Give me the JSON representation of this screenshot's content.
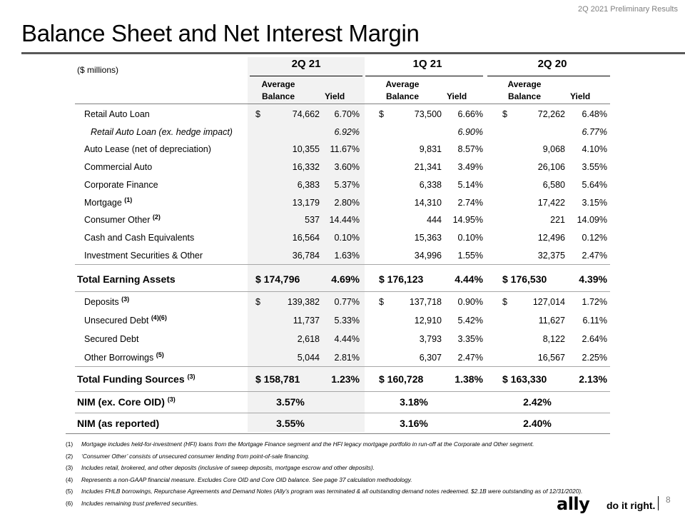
{
  "header": {
    "right_text": "2Q 2021 Preliminary Results",
    "title": "Balance Sheet and Net Interest Margin"
  },
  "table": {
    "units": "($ millions)",
    "periods": [
      "2Q 21",
      "1Q 21",
      "2Q 20"
    ],
    "col_avg_line1": "Average",
    "col_avg_line2": "Balance",
    "col_yield": "Yield",
    "assets": [
      {
        "label": "Retail Auto Loan",
        "sup": "",
        "italic": false,
        "dollar": true,
        "v": [
          "74,662",
          "6.70%",
          "73,500",
          "6.66%",
          "72,262",
          "6.48%"
        ]
      },
      {
        "label": "Retail Auto Loan (ex. hedge impact)",
        "sup": "",
        "italic": true,
        "dollar": false,
        "v": [
          "",
          "6.92%",
          "",
          "6.90%",
          "",
          "6.77%"
        ]
      },
      {
        "label": "Auto Lease (net of depreciation)",
        "sup": "",
        "italic": false,
        "dollar": false,
        "v": [
          "10,355",
          "11.67%",
          "9,831",
          "8.57%",
          "9,068",
          "4.10%"
        ]
      },
      {
        "label": "Commercial Auto",
        "sup": "",
        "italic": false,
        "dollar": false,
        "v": [
          "16,332",
          "3.60%",
          "21,341",
          "3.49%",
          "26,106",
          "3.55%"
        ]
      },
      {
        "label": "Corporate Finance",
        "sup": "",
        "italic": false,
        "dollar": false,
        "v": [
          "6,383",
          "5.37%",
          "6,338",
          "5.14%",
          "6,580",
          "5.64%"
        ]
      },
      {
        "label": "Mortgage",
        "sup": "(1)",
        "italic": false,
        "dollar": false,
        "v": [
          "13,179",
          "2.80%",
          "14,310",
          "2.74%",
          "17,422",
          "3.15%"
        ]
      },
      {
        "label": "Consumer Other",
        "sup": "(2)",
        "italic": false,
        "dollar": false,
        "v": [
          "537",
          "14.44%",
          "444",
          "14.95%",
          "221",
          "14.09%"
        ]
      },
      {
        "label": "Cash and Cash Equivalents",
        "sup": "",
        "italic": false,
        "dollar": false,
        "v": [
          "16,564",
          "0.10%",
          "15,363",
          "0.10%",
          "12,496",
          "0.12%"
        ]
      },
      {
        "label": "Investment Securities & Other",
        "sup": "",
        "italic": false,
        "dollar": false,
        "v": [
          "36,784",
          "1.63%",
          "34,996",
          "1.55%",
          "32,375",
          "2.47%"
        ]
      }
    ],
    "total_assets": {
      "label": "Total Earning Assets",
      "v": [
        "$  174,796",
        "4.69%",
        "$  176,123",
        "4.44%",
        "$  176,530",
        "4.39%"
      ]
    },
    "funding": [
      {
        "label": "Deposits",
        "sup": "(3)",
        "dollar": true,
        "v": [
          "139,382",
          "0.77%",
          "137,718",
          "0.90%",
          "127,014",
          "1.72%"
        ]
      },
      {
        "label": "Unsecured Debt",
        "sup": "(4)(6)",
        "dollar": false,
        "v": [
          "11,737",
          "5.33%",
          "12,910",
          "5.42%",
          "11,627",
          "6.11%"
        ]
      },
      {
        "label": "Secured Debt",
        "sup": "",
        "dollar": false,
        "v": [
          "2,618",
          "4.44%",
          "3,793",
          "3.35%",
          "8,122",
          "2.64%"
        ]
      },
      {
        "label": "Other Borrowings",
        "sup": "(5)",
        "dollar": false,
        "v": [
          "5,044",
          "2.81%",
          "6,307",
          "2.47%",
          "16,567",
          "2.25%"
        ]
      }
    ],
    "total_funding": {
      "label": "Total Funding Sources",
      "sup": "(3)",
      "v": [
        "$  158,781",
        "1.23%",
        "$  160,728",
        "1.38%",
        "$  163,330",
        "2.13%"
      ]
    },
    "nim_core": {
      "label": "NIM (ex. Core OID)",
      "sup": "(3)",
      "v": [
        "3.57%",
        "3.18%",
        "2.42%"
      ]
    },
    "nim_reported": {
      "label": "NIM (as reported)",
      "v": [
        "3.55%",
        "3.16%",
        "2.40%"
      ]
    }
  },
  "dollar_sign": "$",
  "footnotes": [
    {
      "n": "(1)",
      "text": "Mortgage includes held-for-investment (HFI) loans from the Mortgage Finance segment and the HFI legacy mortgage portfolio in run-off at the Corporate and Other segment."
    },
    {
      "n": "(2)",
      "text": "‘Consumer Other’ consists of unsecured consumer lending from point-of-sale financing."
    },
    {
      "n": "(3)",
      "text": "Includes retail, brokered, and other deposits (inclusive of sweep deposits, mortgage escrow and other deposits)."
    },
    {
      "n": "(4)",
      "text": "Represents a non-GAAP financial measure. Excludes Core OID and Core OID balance. See page 37 calculation methodology."
    },
    {
      "n": "(5)",
      "text": "Includes FHLB borrowings, Repurchase Agreements and Demand Notes (Ally’s program was terminated & all outstanding demand notes redeemed. $2.1B were outstanding as of 12/31/2020)."
    },
    {
      "n": "(6)",
      "text": "Includes remaining trust preferred securities."
    }
  ],
  "footer": {
    "logo": "ally",
    "tagline": "do it right.",
    "page": "8"
  }
}
